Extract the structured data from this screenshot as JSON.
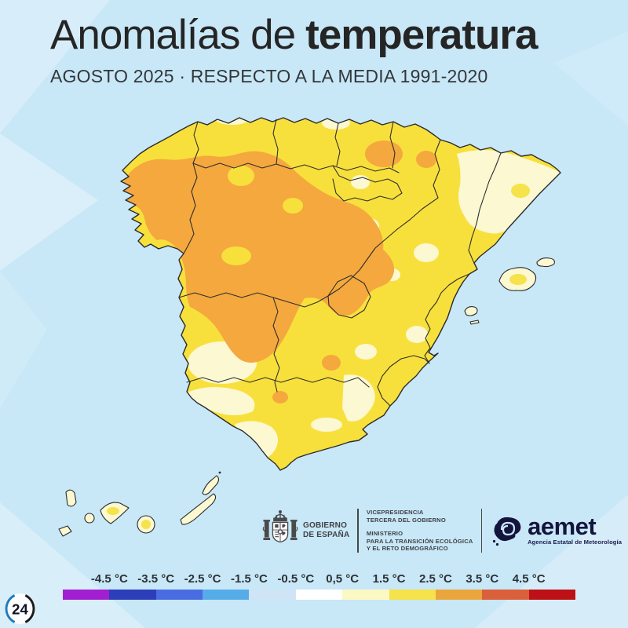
{
  "header": {
    "title_regular": "Anomalías de",
    "title_bold": "temperatura",
    "subtitle": "AGOSTO 2025 · RESPECTO A LA MEDIA 1991-2020"
  },
  "map": {
    "palette": {
      "sea": "#c8e7f7",
      "land_base_yellow": "#f8e03c",
      "anomaly_orange": "#f4a83e",
      "anomaly_pale_yellow": "#fbf8d2",
      "border": "#2b2b2b"
    }
  },
  "legend": {
    "labels": [
      "-4.5 °C",
      "-3.5 °C",
      "-2.5 °C",
      "-1.5 °C",
      "-0.5 °C",
      "0,5 °C",
      "1.5 °C",
      "2.5 °C",
      "3.5 °C",
      "4.5 °C"
    ],
    "colors": [
      "#a21fd1",
      "#2c3eb8",
      "#4a6ce2",
      "#56ace9",
      "#cfe4f4",
      "#ffffff",
      "#fbf8c4",
      "#f6e24b",
      "#eaa63c",
      "#d9603a",
      "#bd1117"
    ]
  },
  "footer": {
    "government": {
      "line1": "GOBIERNO",
      "line2": "DE ESPAÑA"
    },
    "vicepresidencia": {
      "line1": "VICEPRESIDENCIA",
      "line2": "TERCERA DEL GOBIERNO"
    },
    "ministerio": {
      "line1": "MINISTERIO",
      "line2": "PARA LA TRANSICIÓN ECOLÓGICA",
      "line3": "Y EL RETO DEMOGRÁFICO"
    },
    "aemet": {
      "name": "aemet",
      "tagline": "Agencia Estatal de Meteorología"
    }
  },
  "watermark": {
    "label": "24"
  }
}
